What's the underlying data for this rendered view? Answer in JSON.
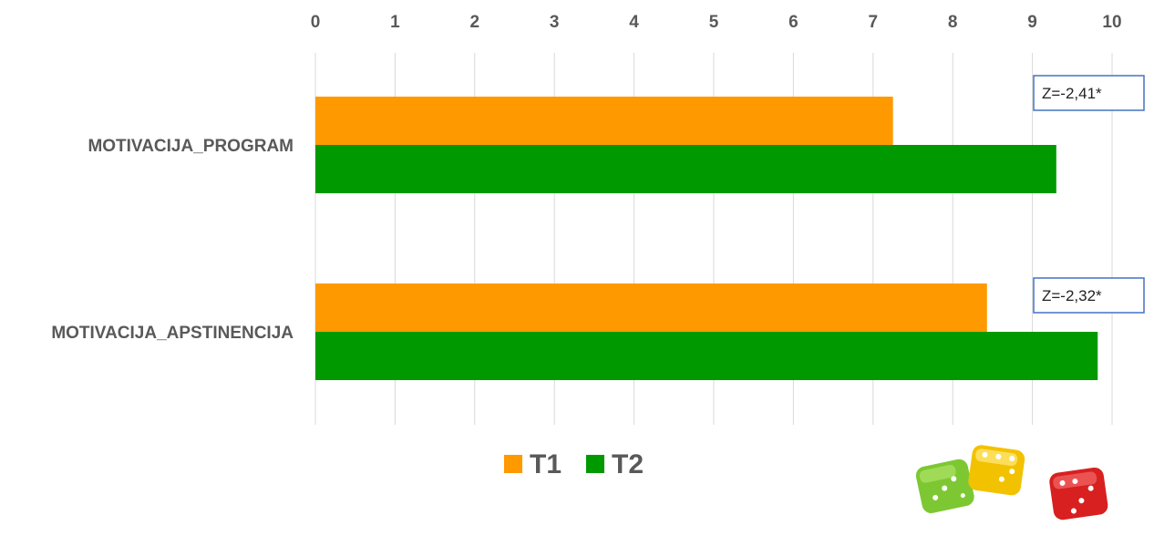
{
  "chart_data": {
    "type": "bar",
    "orientation": "horizontal",
    "categories": [
      "MOTIVACIJA_PROGRAM",
      "MOTIVACIJA_APSTINENCIJA"
    ],
    "series": [
      {
        "name": "T1",
        "color": "#FF9900",
        "values": [
          7.25,
          8.43
        ]
      },
      {
        "name": "T2",
        "color": "#009900",
        "values": [
          9.3,
          9.82
        ]
      }
    ],
    "xlim": [
      0,
      10
    ],
    "xticks": [
      "0",
      "1",
      "2",
      "3",
      "4",
      "5",
      "6",
      "7",
      "8",
      "9",
      "10"
    ],
    "x_axis_position": "top",
    "grid": true,
    "legend_position": "bottom",
    "annotations": [
      "Z=-2,41*",
      "Z=-2,32*"
    ]
  },
  "decor": {
    "image": "dice-icon",
    "dice_colors": [
      "#7DC832",
      "#F2C200",
      "#D82020"
    ]
  }
}
